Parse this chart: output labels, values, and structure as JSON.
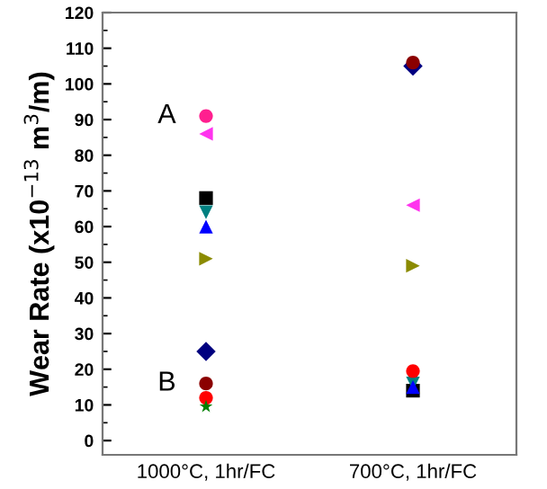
{
  "chart_data": {
    "type": "scatter",
    "ylabel": "Wear Rate (x10$^{−13}$ m$^{3}$/m)",
    "categories": [
      "1000°C, 1hr/FC",
      "700°C, 1hr/FC"
    ],
    "ylim": [
      -4,
      120
    ],
    "yticks": [
      0,
      10,
      20,
      30,
      40,
      50,
      60,
      70,
      80,
      90,
      100,
      110,
      120
    ],
    "grid": false,
    "series": [
      {
        "color": "#ff1f8f",
        "marker": "circle",
        "values": [
          91,
          null
        ]
      },
      {
        "color": "#ff33ee",
        "marker": "triangle_left",
        "values": [
          86,
          66
        ]
      },
      {
        "color": "#000000",
        "marker": "square",
        "values": [
          68,
          14
        ]
      },
      {
        "color": "#008080",
        "marker": "triangle_down",
        "values": [
          64,
          16
        ]
      },
      {
        "color": "#0000ff",
        "marker": "triangle",
        "values": [
          60,
          15
        ]
      },
      {
        "color": "#8b8b00",
        "marker": "triangle_right",
        "values": [
          51,
          49
        ]
      },
      {
        "color": "#000080",
        "marker": "diamond",
        "values": [
          25,
          105
        ]
      },
      {
        "color": "#8b0000",
        "marker": "circle",
        "values": [
          16,
          106
        ]
      },
      {
        "color": "#ff0000",
        "marker": "circle",
        "values": [
          12,
          19.5
        ]
      },
      {
        "color": "#008000",
        "marker": "star",
        "values": [
          9.5,
          null
        ]
      }
    ],
    "annotations": [
      {
        "text": "A",
        "x": "1000°C, 1hr/FC",
        "y": 91
      },
      {
        "text": "B",
        "x": "1000°C, 1hr/FC",
        "y": 16
      }
    ]
  }
}
